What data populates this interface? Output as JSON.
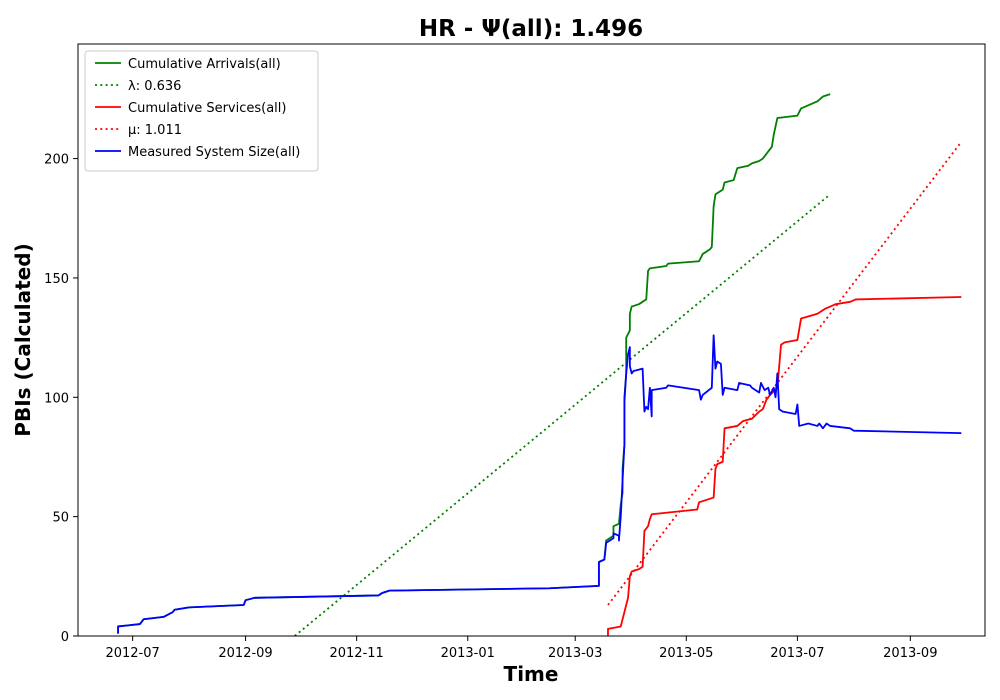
{
  "chart_data": {
    "type": "line",
    "title": "HR -  Ψ(all): 1.496",
    "xlabel": "Time",
    "ylabel": "PBIs (Calculated)",
    "xlim": [
      "2012-06-01",
      "2013-10-12"
    ],
    "ylim": [
      0,
      248
    ],
    "x_ticks": [
      {
        "date": "2012-07-01",
        "label": "2012-07"
      },
      {
        "date": "2012-09-01",
        "label": "2012-09"
      },
      {
        "date": "2012-11-01",
        "label": "2012-11"
      },
      {
        "date": "2013-01-01",
        "label": "2013-01"
      },
      {
        "date": "2013-03-01",
        "label": "2013-03"
      },
      {
        "date": "2013-05-01",
        "label": "2013-05"
      },
      {
        "date": "2013-07-01",
        "label": "2013-07"
      },
      {
        "date": "2013-09-01",
        "label": "2013-09"
      }
    ],
    "y_ticks": [
      0,
      50,
      100,
      150,
      200
    ],
    "grid": false,
    "legend_position": "top-left",
    "series": [
      {
        "name": "Cumulative Arrivals(all)",
        "color": "#008000",
        "style": "solid",
        "points": [
          [
            "2012-06-23",
            1
          ],
          [
            "2012-06-23",
            4
          ],
          [
            "2012-07-05",
            5
          ],
          [
            "2012-07-07",
            7
          ],
          [
            "2012-07-18",
            8
          ],
          [
            "2012-07-23",
            10
          ],
          [
            "2012-07-24",
            11
          ],
          [
            "2012-08-01",
            12
          ],
          [
            "2012-08-31",
            13
          ],
          [
            "2012-09-01",
            15
          ],
          [
            "2012-09-06",
            16
          ],
          [
            "2012-11-13",
            17
          ],
          [
            "2012-11-15",
            18
          ],
          [
            "2012-11-19",
            19
          ],
          [
            "2013-02-15",
            20
          ],
          [
            "2013-03-14",
            21
          ],
          [
            "2013-03-14",
            31
          ],
          [
            "2013-03-17",
            32
          ],
          [
            "2013-03-18",
            40
          ],
          [
            "2013-03-20",
            41
          ],
          [
            "2013-03-22",
            42
          ],
          [
            "2013-03-22",
            46
          ],
          [
            "2013-03-25",
            47
          ],
          [
            "2013-03-26",
            55
          ],
          [
            "2013-03-27",
            60
          ],
          [
            "2013-03-27",
            70
          ],
          [
            "2013-03-28",
            80
          ],
          [
            "2013-03-28",
            100
          ],
          [
            "2013-03-29",
            110
          ],
          [
            "2013-03-29",
            125
          ],
          [
            "2013-03-31",
            128
          ],
          [
            "2013-03-31",
            135
          ],
          [
            "2013-04-01",
            138
          ],
          [
            "2013-04-05",
            139
          ],
          [
            "2013-04-07",
            140
          ],
          [
            "2013-04-09",
            141
          ],
          [
            "2013-04-10",
            153
          ],
          [
            "2013-04-11",
            154
          ],
          [
            "2013-04-20",
            155
          ],
          [
            "2013-04-21",
            156
          ],
          [
            "2013-05-08",
            157
          ],
          [
            "2013-05-10",
            160
          ],
          [
            "2013-05-14",
            162
          ],
          [
            "2013-05-15",
            163
          ],
          [
            "2013-05-16",
            180
          ],
          [
            "2013-05-17",
            185
          ],
          [
            "2013-05-19",
            186
          ],
          [
            "2013-05-21",
            187
          ],
          [
            "2013-05-22",
            190
          ],
          [
            "2013-05-27",
            191
          ],
          [
            "2013-05-29",
            196
          ],
          [
            "2013-06-04",
            197
          ],
          [
            "2013-06-06",
            198
          ],
          [
            "2013-06-10",
            199
          ],
          [
            "2013-06-12",
            200
          ],
          [
            "2013-06-15",
            203
          ],
          [
            "2013-06-17",
            205
          ],
          [
            "2013-06-18",
            210
          ],
          [
            "2013-06-20",
            217
          ],
          [
            "2013-07-01",
            218
          ],
          [
            "2013-07-03",
            221
          ],
          [
            "2013-07-09",
            223
          ],
          [
            "2013-07-12",
            224
          ],
          [
            "2013-07-15",
            226
          ],
          [
            "2013-07-19",
            227
          ]
        ]
      },
      {
        "name": "λ: 0.636",
        "color": "#008000",
        "style": "dotted",
        "points": [
          [
            "2012-09-28",
            0
          ],
          [
            "2013-07-19",
            185
          ]
        ]
      },
      {
        "name": "Cumulative Services(all)",
        "color": "#ff0000",
        "style": "solid",
        "points": [
          [
            "2013-03-19",
            0
          ],
          [
            "2013-03-19",
            3
          ],
          [
            "2013-03-26",
            4
          ],
          [
            "2013-03-28",
            10
          ],
          [
            "2013-03-30",
            16
          ],
          [
            "2013-03-31",
            25
          ],
          [
            "2013-04-01",
            27
          ],
          [
            "2013-04-05",
            28
          ],
          [
            "2013-04-07",
            29
          ],
          [
            "2013-04-08",
            44
          ],
          [
            "2013-04-10",
            46
          ],
          [
            "2013-04-11",
            49
          ],
          [
            "2013-04-12",
            51
          ],
          [
            "2013-05-07",
            53
          ],
          [
            "2013-05-08",
            56
          ],
          [
            "2013-05-16",
            58
          ],
          [
            "2013-05-17",
            70
          ],
          [
            "2013-05-18",
            72
          ],
          [
            "2013-05-21",
            73
          ],
          [
            "2013-05-22",
            87
          ],
          [
            "2013-05-29",
            88
          ],
          [
            "2013-06-01",
            90
          ],
          [
            "2013-06-06",
            91
          ],
          [
            "2013-06-10",
            94
          ],
          [
            "2013-06-12",
            95
          ],
          [
            "2013-06-14",
            99
          ],
          [
            "2013-06-16",
            101
          ],
          [
            "2013-06-20",
            104
          ],
          [
            "2013-06-22",
            122
          ],
          [
            "2013-06-24",
            123
          ],
          [
            "2013-07-01",
            124
          ],
          [
            "2013-07-03",
            133
          ],
          [
            "2013-07-12",
            135
          ],
          [
            "2013-07-16",
            137
          ],
          [
            "2013-07-22",
            139
          ],
          [
            "2013-07-30",
            140
          ],
          [
            "2013-08-02",
            141
          ],
          [
            "2013-09-29",
            142
          ]
        ]
      },
      {
        "name": "μ: 1.011",
        "color": "#ff0000",
        "style": "dotted",
        "points": [
          [
            "2013-03-19",
            13
          ],
          [
            "2013-09-29",
            207
          ]
        ]
      },
      {
        "name": "Measured System Size(all)",
        "color": "#0000ff",
        "style": "solid",
        "points": [
          [
            "2012-06-23",
            1
          ],
          [
            "2012-06-23",
            4
          ],
          [
            "2012-07-05",
            5
          ],
          [
            "2012-07-07",
            7
          ],
          [
            "2012-07-18",
            8
          ],
          [
            "2012-07-23",
            10
          ],
          [
            "2012-07-24",
            11
          ],
          [
            "2012-08-01",
            12
          ],
          [
            "2012-08-31",
            13
          ],
          [
            "2012-09-01",
            15
          ],
          [
            "2012-09-06",
            16
          ],
          [
            "2012-11-13",
            17
          ],
          [
            "2012-11-15",
            18
          ],
          [
            "2012-11-19",
            19
          ],
          [
            "2013-02-15",
            20
          ],
          [
            "2013-03-14",
            21
          ],
          [
            "2013-03-14",
            31
          ],
          [
            "2013-03-17",
            32
          ],
          [
            "2013-03-18",
            39
          ],
          [
            "2013-03-20",
            40
          ],
          [
            "2013-03-22",
            41
          ],
          [
            "2013-03-22",
            43
          ],
          [
            "2013-03-25",
            42
          ],
          [
            "2013-03-25",
            40
          ],
          [
            "2013-03-26",
            50
          ],
          [
            "2013-03-27",
            65
          ],
          [
            "2013-03-28",
            80
          ],
          [
            "2013-03-28",
            98
          ],
          [
            "2013-03-29",
            110
          ],
          [
            "2013-03-30",
            118
          ],
          [
            "2013-03-31",
            121
          ],
          [
            "2013-03-31",
            113
          ],
          [
            "2013-04-01",
            110
          ],
          [
            "2013-04-02",
            111
          ],
          [
            "2013-04-07",
            112
          ],
          [
            "2013-04-08",
            94
          ],
          [
            "2013-04-09",
            96
          ],
          [
            "2013-04-10",
            95
          ],
          [
            "2013-04-11",
            104
          ],
          [
            "2013-04-12",
            92
          ],
          [
            "2013-04-12",
            103
          ],
          [
            "2013-04-20",
            104
          ],
          [
            "2013-04-21",
            105
          ],
          [
            "2013-05-08",
            103
          ],
          [
            "2013-05-09",
            99
          ],
          [
            "2013-05-10",
            101
          ],
          [
            "2013-05-15",
            104
          ],
          [
            "2013-05-16",
            126
          ],
          [
            "2013-05-17",
            112
          ],
          [
            "2013-05-18",
            115
          ],
          [
            "2013-05-20",
            114
          ],
          [
            "2013-05-21",
            101
          ],
          [
            "2013-05-22",
            104
          ],
          [
            "2013-05-29",
            103
          ],
          [
            "2013-05-30",
            106
          ],
          [
            "2013-06-05",
            105
          ],
          [
            "2013-06-06",
            104
          ],
          [
            "2013-06-10",
            102
          ],
          [
            "2013-06-11",
            106
          ],
          [
            "2013-06-13",
            103
          ],
          [
            "2013-06-15",
            104
          ],
          [
            "2013-06-16",
            101
          ],
          [
            "2013-06-18",
            104
          ],
          [
            "2013-06-19",
            100
          ],
          [
            "2013-06-20",
            110
          ],
          [
            "2013-06-21",
            95
          ],
          [
            "2013-06-23",
            94
          ],
          [
            "2013-06-30",
            93
          ],
          [
            "2013-07-01",
            97
          ],
          [
            "2013-07-02",
            88
          ],
          [
            "2013-07-07",
            89
          ],
          [
            "2013-07-12",
            88
          ],
          [
            "2013-07-13",
            89
          ],
          [
            "2013-07-15",
            87
          ],
          [
            "2013-07-17",
            89
          ],
          [
            "2013-07-19",
            88
          ],
          [
            "2013-07-30",
            87
          ],
          [
            "2013-08-01",
            86
          ],
          [
            "2013-09-29",
            85
          ]
        ]
      }
    ]
  }
}
